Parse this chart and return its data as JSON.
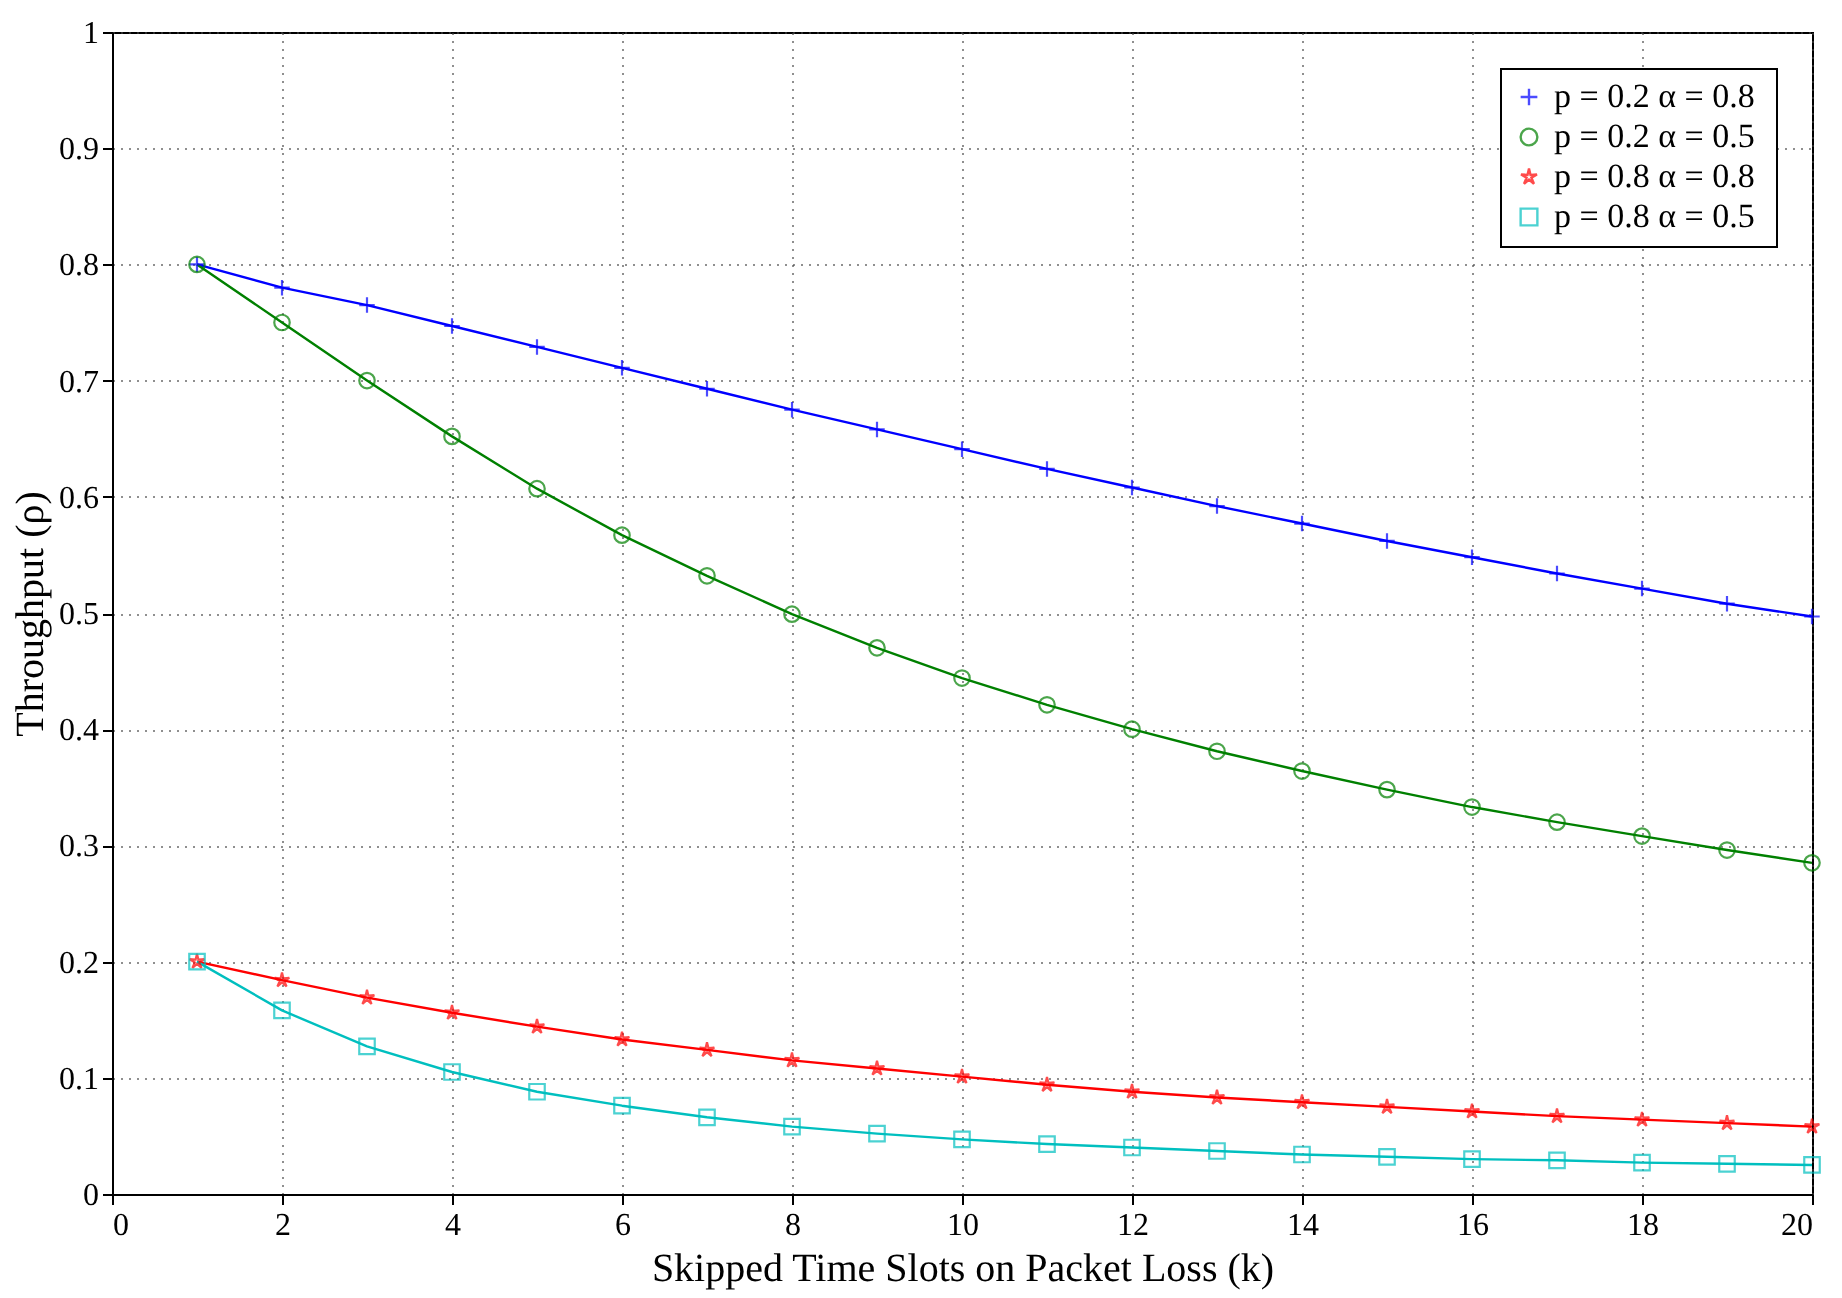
{
  "chart_data": {
    "type": "line",
    "xlabel": "Skipped Time Slots on Packet Loss (k)",
    "ylabel": "Throughput (ρ)",
    "x": [
      1,
      2,
      3,
      4,
      5,
      6,
      7,
      8,
      9,
      10,
      11,
      12,
      13,
      14,
      15,
      16,
      17,
      18,
      19,
      20
    ],
    "series": [
      {
        "name": "p = 0.2  α = 0.8",
        "color": "#0000ff",
        "marker": "cross",
        "values": [
          0.8,
          0.78,
          0.765,
          0.747,
          0.729,
          0.711,
          0.693,
          0.675,
          0.658,
          0.641,
          0.624,
          0.608,
          0.592,
          0.577,
          0.562,
          0.548,
          0.534,
          0.521,
          0.508,
          0.497
        ]
      },
      {
        "name": "p = 0.2  α = 0.5",
        "color": "#008000",
        "marker": "circle",
        "values": [
          0.8,
          0.75,
          0.7,
          0.652,
          0.607,
          0.567,
          0.532,
          0.499,
          0.47,
          0.444,
          0.421,
          0.4,
          0.381,
          0.364,
          0.348,
          0.333,
          0.32,
          0.308,
          0.296,
          0.285
        ]
      },
      {
        "name": "p = 0.8  α = 0.8",
        "color": "#ff0000",
        "marker": "star",
        "values": [
          0.2,
          0.184,
          0.169,
          0.156,
          0.144,
          0.133,
          0.124,
          0.115,
          0.108,
          0.101,
          0.094,
          0.088,
          0.083,
          0.079,
          0.075,
          0.071,
          0.067,
          0.064,
          0.061,
          0.058
        ]
      },
      {
        "name": "p = 0.8  α = 0.5",
        "color": "#00bfbf",
        "marker": "square",
        "values": [
          0.2,
          0.158,
          0.127,
          0.105,
          0.088,
          0.076,
          0.066,
          0.058,
          0.052,
          0.047,
          0.043,
          0.04,
          0.037,
          0.034,
          0.032,
          0.03,
          0.029,
          0.027,
          0.026,
          0.025
        ]
      }
    ],
    "xlim": [
      0,
      20
    ],
    "xticks": [
      0,
      2,
      4,
      6,
      8,
      10,
      12,
      14,
      16,
      18,
      20
    ],
    "ylim": [
      0,
      1
    ],
    "yticks": [
      0,
      {
        "value": 0.1,
        "label": "0.1"
      },
      {
        "value": 0.2,
        "label": "0.2"
      },
      {
        "value": 0.3,
        "label": "0.3"
      },
      {
        "value": 0.4,
        "label": "0.4"
      },
      {
        "value": 0.5,
        "label": "0.5"
      },
      {
        "value": 0.6,
        "label": "0.6"
      },
      {
        "value": 0.7,
        "label": "0.7"
      },
      {
        "value": 0.8,
        "label": "0.8"
      },
      {
        "value": 0.9,
        "label": "0.9"
      },
      1
    ],
    "grid": true,
    "legend": "top right",
    "line_style": "solid"
  }
}
